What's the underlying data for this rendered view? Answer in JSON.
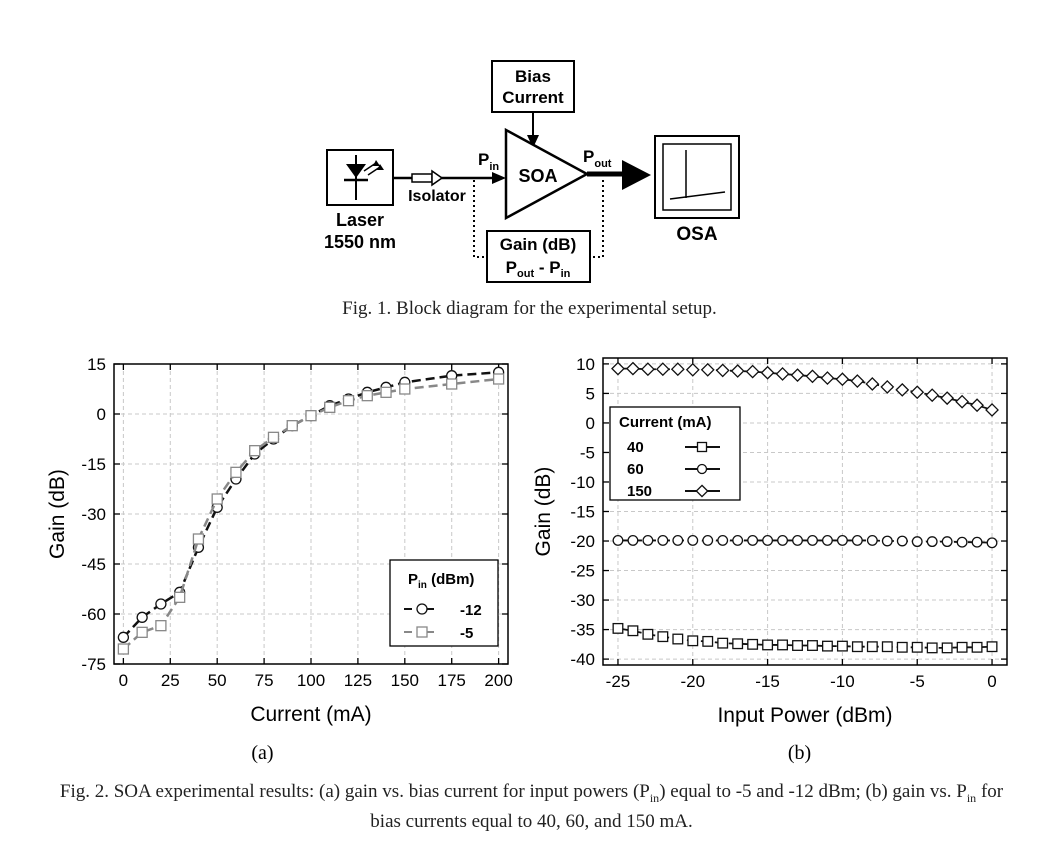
{
  "figure1": {
    "labels": {
      "bias": [
        "Bias",
        "Current"
      ],
      "soa": "SOA",
      "pin_main": "P",
      "pin_sub": "in",
      "pout_main": "P",
      "pout_sub": "out",
      "isolator": "Isolator",
      "laser": [
        "Laser",
        "1550 nm"
      ],
      "gain": "Gain (dB)",
      "formula_p1": "P",
      "formula_sub1": "out",
      "formula_minus": " - P",
      "formula_sub2": "in",
      "osa": "OSA"
    },
    "caption": "Fig. 1. Block diagram for the experimental setup."
  },
  "figure2": {
    "panel_a_label": "(a)",
    "panel_b_label": "(b)",
    "caption_line1_a": "Fig. 2. SOA experimental results: (a) gain vs. bias current for input powers (P",
    "caption_sub_in_1": "in",
    "caption_line1_b": ") equal to -5 and -12 dBm; (b) gain vs. P",
    "caption_sub_in_2": "in",
    "caption_line1_c": " for",
    "caption_line2": "bias currents equal to 40, 60, and 150 mA."
  },
  "chart_data": [
    {
      "type": "line",
      "title": "",
      "xlabel": "Current (mA)",
      "ylabel": "Gain (dB)",
      "xlim": [
        -5,
        205
      ],
      "ylim": [
        -75,
        15
      ],
      "xticks": [
        0,
        25,
        50,
        75,
        100,
        125,
        150,
        175,
        200
      ],
      "yticks": [
        15,
        0,
        -15,
        -30,
        -45,
        -60,
        -75
      ],
      "grid": true,
      "legend": {
        "placement": "bottom-right",
        "title_main": "P",
        "title_sub": "in",
        "title_unit": " (dBm)"
      },
      "series": [
        {
          "name": "-12",
          "marker": "circle",
          "color": "#111111",
          "x": [
            0,
            10,
            20,
            30,
            40,
            50,
            60,
            70,
            80,
            90,
            100,
            110,
            120,
            130,
            140,
            150,
            175,
            200
          ],
          "y": [
            -67,
            -61,
            -57,
            -53.5,
            -40,
            -28,
            -19.5,
            -12,
            -7.5,
            -3.5,
            -0.5,
            2.5,
            4.5,
            6.5,
            8,
            9.5,
            11.5,
            12.5
          ]
        },
        {
          "name": "-5",
          "marker": "square",
          "color": "#888888",
          "x": [
            0,
            10,
            20,
            30,
            40,
            50,
            60,
            70,
            80,
            90,
            100,
            110,
            120,
            130,
            140,
            150,
            175,
            200
          ],
          "y": [
            -70.5,
            -65.5,
            -63.5,
            -55,
            -37.5,
            -25.5,
            -17.5,
            -11,
            -7,
            -3.5,
            -0.5,
            2,
            4,
            5.5,
            6.5,
            7.5,
            9,
            10.5
          ]
        }
      ]
    },
    {
      "type": "line",
      "title": "",
      "xlabel": "Input Power (dBm)",
      "ylabel": "Gain (dB)",
      "xlim": [
        -26,
        1
      ],
      "ylim": [
        -41,
        11
      ],
      "xticks": [
        -25,
        -20,
        -15,
        -10,
        -5,
        0
      ],
      "yticks": [
        10,
        5,
        0,
        -5,
        -10,
        -15,
        -20,
        -25,
        -30,
        -35,
        -40
      ],
      "grid": true,
      "legend": {
        "placement": "top-left",
        "title": "Current  (mA)"
      },
      "series": [
        {
          "name": "40",
          "marker": "square",
          "color": "#111111",
          "x": [
            -25,
            -24,
            -23,
            -22,
            -21,
            -20,
            -19,
            -18,
            -17,
            -16,
            -15,
            -14,
            -13,
            -12,
            -11,
            -10,
            -9,
            -8,
            -7,
            -6,
            -5,
            -4,
            -3,
            -2,
            -1,
            0
          ],
          "y": [
            -34.8,
            -35.2,
            -35.8,
            -36.2,
            -36.6,
            -36.9,
            -37.0,
            -37.3,
            -37.4,
            -37.5,
            -37.6,
            -37.6,
            -37.7,
            -37.7,
            -37.8,
            -37.8,
            -37.9,
            -37.9,
            -37.9,
            -38.0,
            -38.0,
            -38.1,
            -38.1,
            -38.0,
            -38.0,
            -37.9
          ]
        },
        {
          "name": "60",
          "marker": "circle",
          "color": "#111111",
          "x": [
            -25,
            -24,
            -23,
            -22,
            -21,
            -20,
            -19,
            -18,
            -17,
            -16,
            -15,
            -14,
            -13,
            -12,
            -11,
            -10,
            -9,
            -8,
            -7,
            -6,
            -5,
            -4,
            -3,
            -2,
            -1,
            0
          ],
          "y": [
            -19.9,
            -19.9,
            -19.9,
            -19.9,
            -19.9,
            -19.9,
            -19.9,
            -19.9,
            -19.9,
            -19.9,
            -19.9,
            -19.9,
            -19.9,
            -19.9,
            -19.9,
            -19.9,
            -19.9,
            -19.9,
            -20.0,
            -20.0,
            -20.1,
            -20.1,
            -20.1,
            -20.2,
            -20.2,
            -20.3
          ]
        },
        {
          "name": "150",
          "marker": "diamond",
          "color": "#111111",
          "x": [
            -25,
            -24,
            -23,
            -22,
            -21,
            -20,
            -19,
            -18,
            -17,
            -16,
            -15,
            -14,
            -13,
            -12,
            -11,
            -10,
            -9,
            -8,
            -7,
            -6,
            -5,
            -4,
            -3,
            -2,
            -1,
            0
          ],
          "y": [
            9.2,
            9.2,
            9.1,
            9.1,
            9.1,
            9.0,
            9.0,
            8.9,
            8.8,
            8.7,
            8.5,
            8.3,
            8.1,
            7.9,
            7.6,
            7.4,
            7.1,
            6.6,
            6.1,
            5.6,
            5.2,
            4.7,
            4.2,
            3.6,
            3.0,
            2.2
          ]
        }
      ]
    }
  ]
}
